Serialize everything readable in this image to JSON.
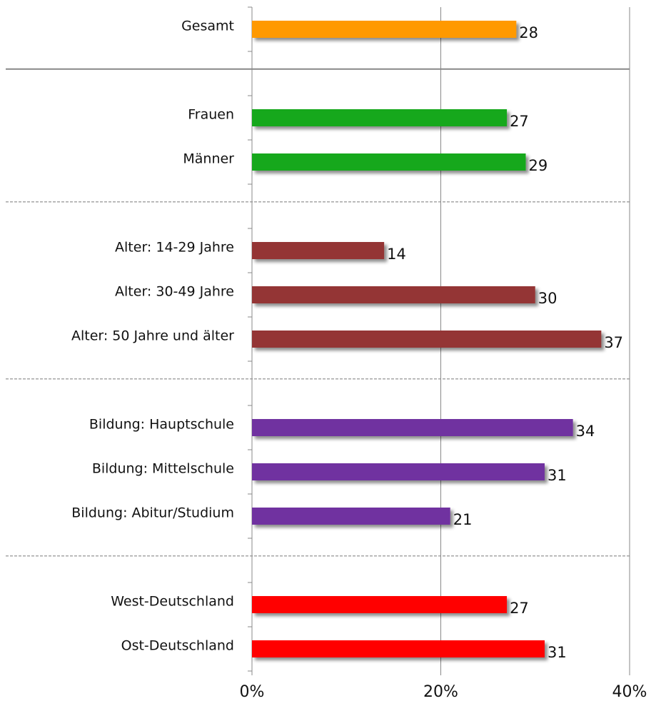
{
  "chart_data": {
    "type": "barh",
    "categories": [
      "Gesamt",
      null,
      "Frauen",
      "Männer",
      null,
      "Alter: 14-29 Jahre",
      "Alter: 30-49 Jahre",
      "Alter: 50 Jahre und älter",
      null,
      "Bildung: Hauptschule",
      "Bildung: Mittelschule",
      "Bildung: Abitur/Studium",
      null,
      "West-Deutschland",
      "Ost-Deutschland"
    ],
    "values": [
      28,
      null,
      27,
      29,
      null,
      14,
      30,
      37,
      null,
      34,
      31,
      21,
      null,
      27,
      31
    ],
    "colors": [
      "#ff9900",
      null,
      "#19a81f",
      "#19a81f",
      null,
      "#943634",
      "#943634",
      "#943634",
      null,
      "#7030a0",
      "#7030a0",
      "#7030a0",
      null,
      "#ff0000",
      "#ff0000"
    ],
    "xlim": [
      0,
      40
    ],
    "xticks": [
      {
        "value": 0,
        "label": "0%"
      },
      {
        "value": 20,
        "label": "20%"
      },
      {
        "value": 40,
        "label": "40%"
      }
    ],
    "grid": true
  }
}
